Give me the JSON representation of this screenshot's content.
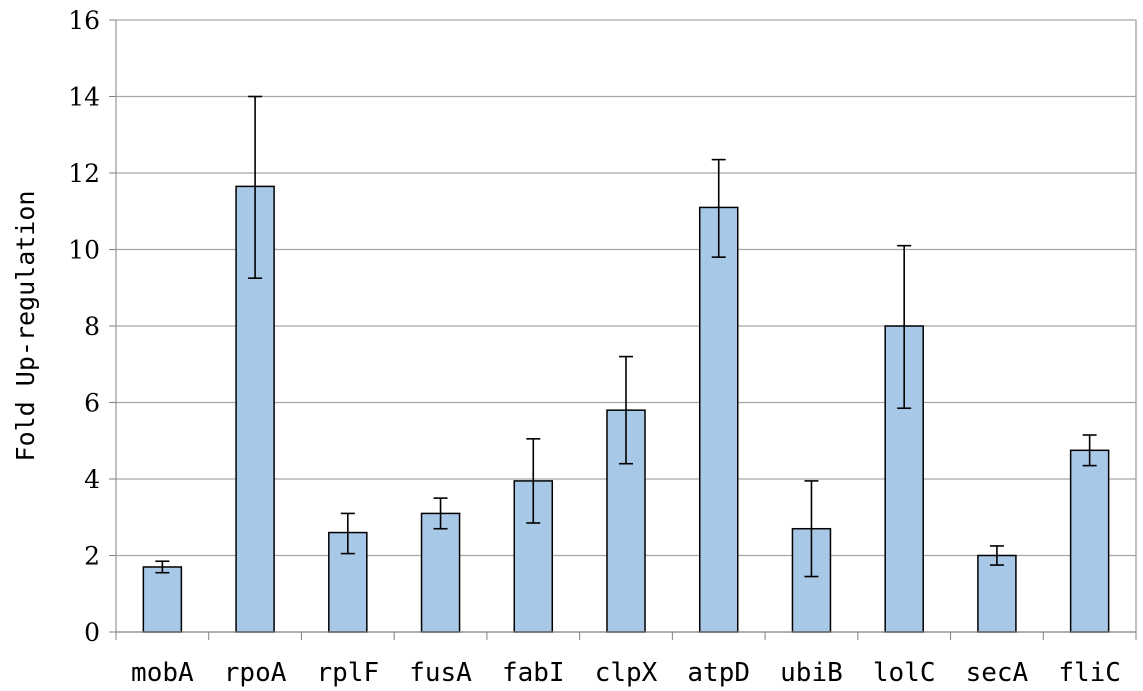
{
  "chart_data": {
    "type": "bar",
    "title": "",
    "xlabel": "",
    "ylabel": "Fold Up-regulation",
    "ylim": [
      0,
      16
    ],
    "yticks": [
      0,
      2,
      4,
      6,
      8,
      10,
      12,
      14,
      16
    ],
    "grid": true,
    "categories": [
      "mobA",
      "rpoA",
      "rplF",
      "fusA",
      "fabI",
      "clpX",
      "atpD",
      "ubiB",
      "lolC",
      "secA",
      "fliC"
    ],
    "values": [
      1.7,
      11.65,
      2.6,
      3.1,
      3.95,
      5.8,
      11.1,
      2.7,
      8.0,
      2.0,
      4.75
    ],
    "error_low": [
      1.55,
      9.25,
      2.05,
      2.7,
      2.85,
      4.4,
      9.8,
      1.45,
      5.85,
      1.75,
      4.35
    ],
    "error_high": [
      1.85,
      14.0,
      3.1,
      3.5,
      5.05,
      7.2,
      12.35,
      3.95,
      10.1,
      2.25,
      5.15
    ],
    "colors": {
      "bar_fill": "#a8c8e8",
      "bar_stroke": "#000000",
      "grid": "#a6a6a6",
      "axis": "#808080",
      "error": "#000000"
    }
  }
}
